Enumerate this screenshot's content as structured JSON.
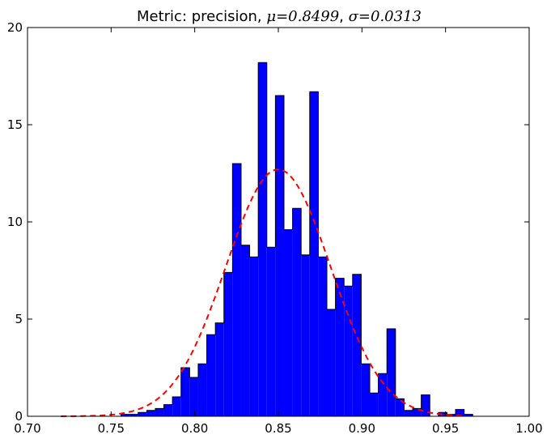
{
  "chart_data": {
    "type": "bar",
    "title": {
      "prefix": "Metric: precision, ",
      "mu_symbol": "μ",
      "mu_value": "=0.8499",
      "separator": ", ",
      "sigma_symbol": "σ",
      "sigma_value": "=0.0313"
    },
    "xlabel": "",
    "ylabel": "",
    "xlim": [
      0.7,
      1.0
    ],
    "ylim": [
      0,
      20
    ],
    "x_ticks": [
      0.7,
      0.75,
      0.8,
      0.85,
      0.9,
      0.95,
      1.0
    ],
    "x_tick_labels": [
      "0.70",
      "0.75",
      "0.80",
      "0.85",
      "0.90",
      "0.95",
      "1.00"
    ],
    "y_ticks": [
      0,
      5,
      10,
      15,
      20
    ],
    "y_tick_labels": [
      "0",
      "5",
      "10",
      "15",
      "20"
    ],
    "histogram": {
      "bin_start": 0.72,
      "bin_width": 0.00513,
      "counts": [
        0,
        0,
        0,
        0,
        0,
        0,
        0,
        0.1,
        0.1,
        0.2,
        0.3,
        0.4,
        0.6,
        1.0,
        2.5,
        2.0,
        2.7,
        4.2,
        4.8,
        7.4,
        13.0,
        8.8,
        8.2,
        18.2,
        8.7,
        16.5,
        9.6,
        10.7,
        8.3,
        16.7,
        8.2,
        5.5,
        7.1,
        6.7,
        7.3,
        2.7,
        1.2,
        2.2,
        4.5,
        0.9,
        0.3,
        0.4,
        1.1,
        0.0,
        0.2,
        0.1,
        0.35,
        0.1,
        0,
        0,
        0,
        0,
        0,
        0
      ],
      "fill": "#0000ff",
      "edge": "#000000"
    },
    "normal_fit": {
      "mu": 0.8499,
      "sigma": 0.0313,
      "peak": 12.7,
      "color": "#ff0000",
      "style": "dashed"
    },
    "grid": false
  }
}
